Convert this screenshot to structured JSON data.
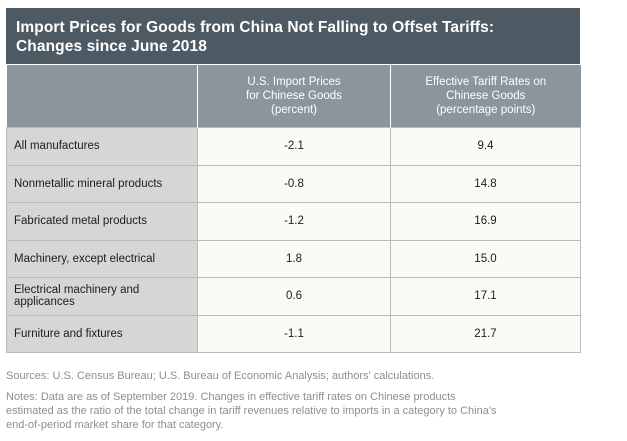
{
  "chart_data": {
    "type": "table",
    "title": [
      "Import Prices for Goods from China Not Falling to Offset Tariffs:",
      "Changes since June 2018"
    ],
    "columns": [
      "",
      "U.S. Import Prices for Chinese Goods (percent)",
      "Effective Tariff Rates on Chinese Goods (percentage points)"
    ],
    "column_lines": [
      [],
      [
        "U.S. Import Prices",
        "for Chinese Goods",
        "(percent)"
      ],
      [
        "Effective Tariff Rates on",
        "Chinese Goods",
        "(percentage points)"
      ]
    ],
    "rows": [
      {
        "category": "All manufactures",
        "import_price_change": "-2.1",
        "tariff_rate_change": "9.4"
      },
      {
        "category": "Nonmetallic mineral products",
        "import_price_change": "-0.8",
        "tariff_rate_change": "14.8"
      },
      {
        "category": "Fabricated metal products",
        "import_price_change": "-1.2",
        "tariff_rate_change": "16.9"
      },
      {
        "category": "Machinery, except electrical",
        "import_price_change": "1.8",
        "tariff_rate_change": "15.0"
      },
      {
        "category": "Electrical machinery and applicances",
        "import_price_change": "0.6",
        "tariff_rate_change": "17.1"
      },
      {
        "category": "Furniture and fixtures",
        "import_price_change": "-1.1",
        "tariff_rate_change": "21.7"
      }
    ],
    "source": "Sources: U.S. Census Bureau; U.S. Bureau of Economic Analysis; authors' calculations.",
    "notes": [
      "Notes: Data are as of September 2019. Changes in effective tariff rates on Chinese products",
      "estimated as the ratio of the total change in tariff revenues relative to imports in a category to China's",
      "end-of-period market share for that category."
    ]
  },
  "colors": {
    "title_background": "#4d5a63",
    "header_background": "#8c959b",
    "label_column_background": "#d5d6d6",
    "value_cell_background": "#fbfaf5",
    "footnote_text": "#8e8e8e"
  }
}
